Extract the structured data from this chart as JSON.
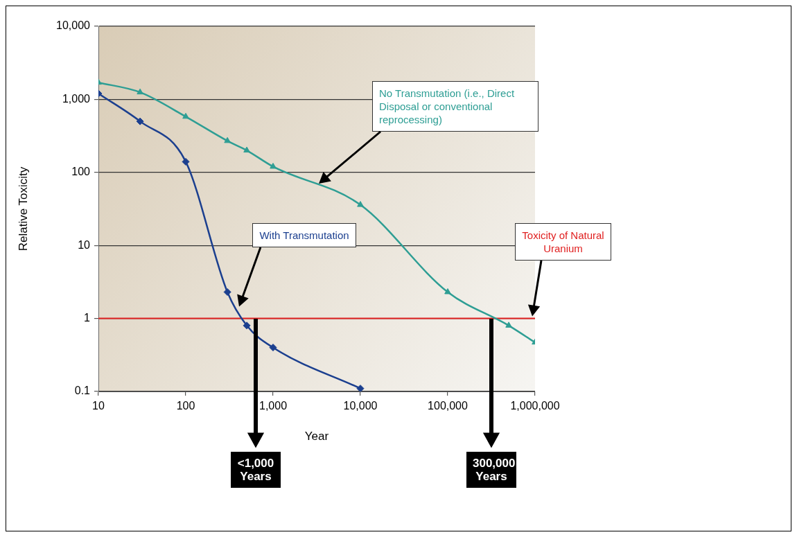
{
  "chart_data": {
    "type": "line",
    "xlabel": "Year",
    "ylabel": "Relative Toxicity",
    "log": "xy",
    "grid": "y",
    "legend": false,
    "line_style": "solid",
    "xlim": [
      10,
      1000000
    ],
    "xticks": [
      10,
      100,
      {
        "value": 1000,
        "label": "1,000"
      },
      {
        "value": 10000,
        "label": "10,000"
      },
      {
        "value": 100000,
        "label": "100,000"
      },
      {
        "value": 1000000,
        "label": "1,000,000"
      }
    ],
    "ylim": [
      0.1,
      10000
    ],
    "yticks": [
      0.1,
      1,
      10,
      100,
      {
        "value": 1000,
        "label": "1,000"
      },
      {
        "value": 10000,
        "label": "10,000"
      }
    ],
    "series": [
      {
        "name": "With Transmutation",
        "color": "#1b3f8f",
        "marker": "diamond",
        "x": [
          10,
          30,
          100,
          300,
          500,
          1000,
          10000
        ],
        "values": [
          1200,
          500,
          140,
          2.3,
          0.8,
          0.4,
          0.11
        ]
      },
      {
        "name": "No Transmutation (i.e., Direct Disposal or conventional reprocessing)",
        "color": "#2e9e94",
        "marker": "triangle",
        "x": [
          10,
          30,
          100,
          300,
          500,
          1000,
          10000,
          100000,
          500000,
          1000000
        ],
        "values": [
          1700,
          1250,
          580,
          270,
          200,
          120,
          36,
          2.3,
          0.8,
          0.47
        ]
      }
    ],
    "ref_lines": [
      {
        "axis": "y",
        "value": 1,
        "label": "Toxicity of Natural Uranium",
        "color": "#e02020",
        "line_style": "solid"
      }
    ],
    "annotations": [
      "<1,000 Years",
      "300,000 Years"
    ]
  }
}
